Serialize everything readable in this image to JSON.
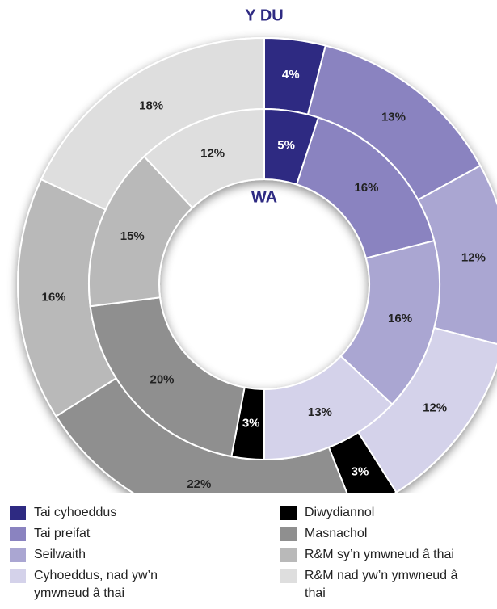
{
  "chart_data": {
    "type": "donut",
    "categories": [
      "Tai cyhoeddus",
      "Tai preifat",
      "Seilwaith",
      "Cyhoeddus, nad yw’n ymwneud â thai",
      "Diwydiannol",
      "Masnachol",
      "R&M sy’n ymwneud â thai",
      "R&M nad yw’n ymwneud â thai"
    ],
    "colors": [
      "#2e2a82",
      "#8a83c0",
      "#aaa6d2",
      "#d4d2ea",
      "#000000",
      "#8f8f8f",
      "#b9b9b9",
      "#dedede"
    ],
    "series": [
      {
        "name": "Y DU",
        "values": [
          4,
          13,
          12,
          12,
          3,
          22,
          16,
          18
        ],
        "value_labels": [
          "4%",
          "13%",
          "12%",
          "12%",
          "3%",
          "22%",
          "16%",
          "18%"
        ]
      },
      {
        "name": "WA",
        "values": [
          5,
          16,
          16,
          13,
          3,
          20,
          15,
          12
        ],
        "value_labels": [
          "5%",
          "16%",
          "16%",
          "13%",
          "3%",
          "20%",
          "15%",
          "12%"
        ]
      }
    ]
  }
}
